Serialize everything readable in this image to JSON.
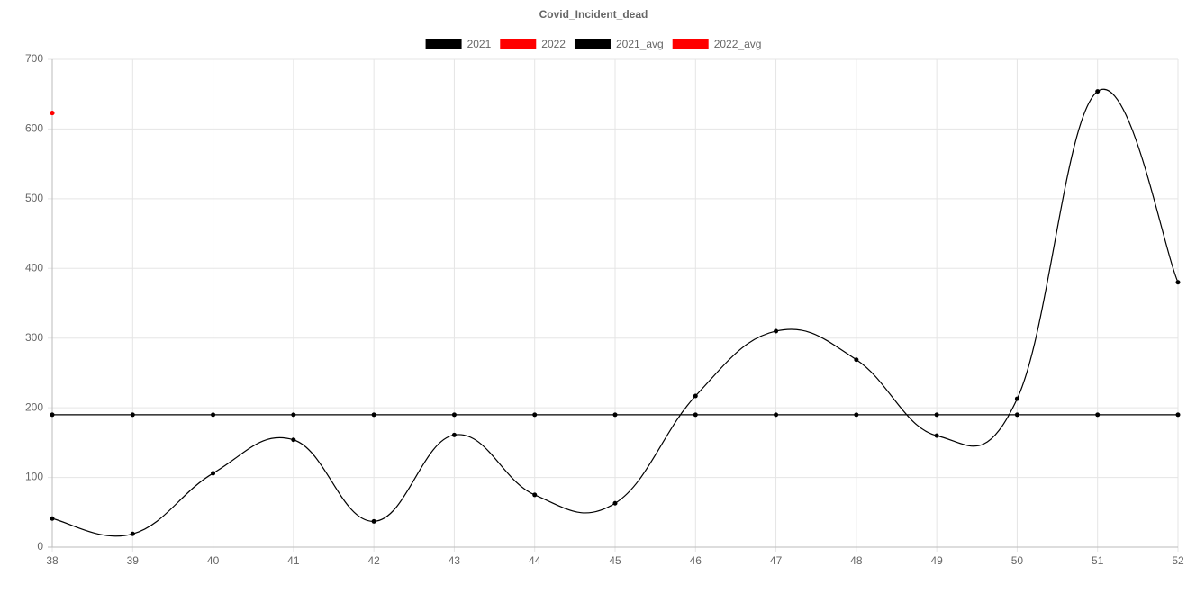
{
  "chart_data": {
    "type": "line",
    "title": "Covid_Incident_dead",
    "categories": [
      "38",
      "39",
      "40",
      "41",
      "42",
      "43",
      "44",
      "45",
      "46",
      "47",
      "48",
      "49",
      "50",
      "51",
      "52"
    ],
    "series": [
      {
        "name": "2021",
        "color": "#000000",
        "values": [
          41,
          19,
          106,
          154,
          37,
          161,
          75,
          63,
          217,
          310,
          269,
          160,
          213,
          654,
          380
        ]
      },
      {
        "name": "2022",
        "color": "#ff0000",
        "values": [
          623,
          null,
          null,
          null,
          null,
          null,
          null,
          null,
          null,
          null,
          null,
          null,
          null,
          null,
          null
        ]
      },
      {
        "name": "2021_avg",
        "color": "#000000",
        "values": [
          190,
          190,
          190,
          190,
          190,
          190,
          190,
          190,
          190,
          190,
          190,
          190,
          190,
          190,
          190
        ]
      },
      {
        "name": "2022_avg",
        "color": "#ff0000",
        "values": [
          623,
          null,
          null,
          null,
          null,
          null,
          null,
          null,
          null,
          null,
          null,
          null,
          null,
          null,
          null
        ]
      }
    ],
    "ylim": [
      0,
      700
    ],
    "yticks": [
      0,
      100,
      200,
      300,
      400,
      500,
      600,
      700
    ],
    "grid": true,
    "legend": "top"
  }
}
